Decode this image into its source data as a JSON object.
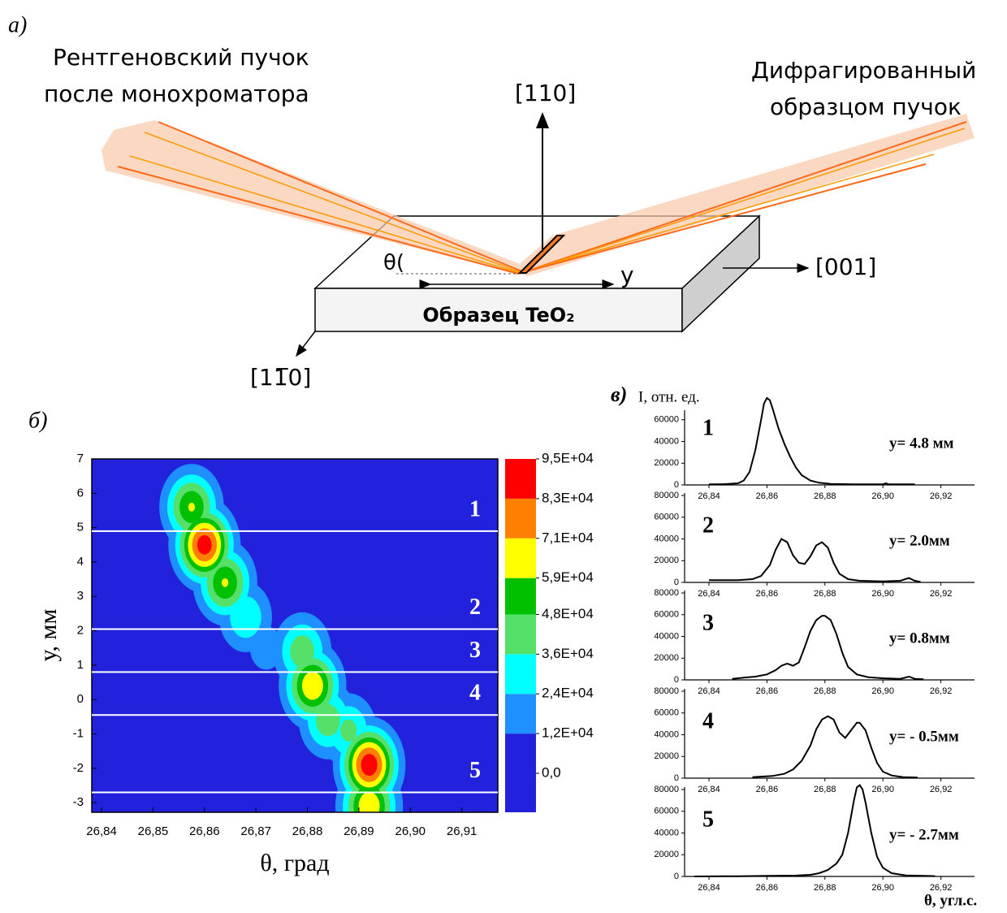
{
  "panel_a": {
    "label": "а)",
    "beam_in": [
      "Рентгеновский пучок",
      "после монохроматора"
    ],
    "beam_out": [
      "Дифрагированный",
      "образцом пучок"
    ],
    "axis_110": "[110]",
    "axis_001": "[001]",
    "axis_1m10": "[11̅0]",
    "theta": "θ(",
    "y": "y",
    "sample": "Образец TeO₂"
  },
  "chart_data": [
    {
      "type": "contour",
      "panel_label": "б)",
      "xlabel": "θ, град",
      "ylabel": "у, мм",
      "xlim": [
        26.8381,
        26.917
      ],
      "ylim": [
        -3.28,
        7
      ],
      "xticks": [
        {
          "value": 26.84,
          "label": "26,84"
        },
        {
          "value": 26.85,
          "label": "26,85"
        },
        {
          "value": 26.86,
          "label": "26,86"
        },
        {
          "value": 26.87,
          "label": "26,87"
        },
        {
          "value": 26.88,
          "label": "26,88"
        },
        {
          "value": 26.89,
          "label": "26,89"
        },
        {
          "value": 26.9,
          "label": "26,90"
        },
        {
          "value": 26.91,
          "label": "26,91"
        }
      ],
      "yticks": [
        -3,
        -2,
        -1,
        0,
        1,
        2,
        3,
        4,
        5,
        6,
        7
      ],
      "colorbar_ticks": [
        {
          "value": 0,
          "label": "0,0"
        },
        {
          "value": 12000,
          "label": "1,2E+04"
        },
        {
          "value": 24000,
          "label": "2,4E+04"
        },
        {
          "value": 36000,
          "label": "3,6E+04"
        },
        {
          "value": 48000,
          "label": "4,8E+04"
        },
        {
          "value": 59000,
          "label": "5,9E+04"
        },
        {
          "value": 71000,
          "label": "7,1E+04"
        },
        {
          "value": 83000,
          "label": "8,3E+04"
        },
        {
          "value": 95000,
          "label": "9,5E+04"
        }
      ],
      "colors": [
        "#2222dd",
        "#1e90ff",
        "#00ffff",
        "#55e06a",
        "#00c000",
        "#ffff00",
        "#ff8000",
        "#ff0000"
      ],
      "peaks": [
        {
          "x": 26.8575,
          "y": 5.6,
          "value": 60000,
          "sx": 0.0035,
          "sy": 0.7
        },
        {
          "x": 26.86,
          "y": 4.5,
          "value": 90000,
          "sx": 0.0035,
          "sy": 0.7
        },
        {
          "x": 26.864,
          "y": 3.4,
          "value": 60000,
          "sx": 0.0035,
          "sy": 0.7
        },
        {
          "x": 26.868,
          "y": 2.4,
          "value": 35000,
          "sx": 0.0035,
          "sy": 0.7
        },
        {
          "x": 26.872,
          "y": 1.5,
          "value": 18000,
          "sx": 0.0035,
          "sy": 0.7
        },
        {
          "x": 26.879,
          "y": 1.4,
          "value": 45000,
          "sx": 0.0035,
          "sy": 0.7
        },
        {
          "x": 26.881,
          "y": 0.4,
          "value": 70000,
          "sx": 0.0035,
          "sy": 0.7
        },
        {
          "x": 26.884,
          "y": -0.6,
          "value": 45000,
          "sx": 0.0035,
          "sy": 0.7
        },
        {
          "x": 26.888,
          "y": -0.9,
          "value": 40000,
          "sx": 0.0035,
          "sy": 0.7
        },
        {
          "x": 26.892,
          "y": -1.9,
          "value": 92000,
          "sx": 0.0035,
          "sy": 0.7
        },
        {
          "x": 26.892,
          "y": -3.1,
          "value": 70000,
          "sx": 0.0035,
          "sy": 0.7
        }
      ],
      "scan_lines": [
        {
          "label": "1",
          "y": 4.9
        },
        {
          "label": "2",
          "y": 2.05
        },
        {
          "label": "3",
          "y": 0.8
        },
        {
          "label": "4",
          "y": -0.45
        },
        {
          "label": "5",
          "y": -2.7
        }
      ]
    },
    {
      "type": "line",
      "panel_label": "в)",
      "ylabel": "I, отн. ед.",
      "label": "1",
      "annotation": "y=  4.8 мм",
      "color": "#000000",
      "xlim": [
        26.8316,
        26.9316
      ],
      "ylim": [
        0,
        80000
      ],
      "xticks": [
        {
          "value": 26.84,
          "label": "26,84"
        },
        {
          "value": 26.86,
          "label": "26,86"
        },
        {
          "value": 26.88,
          "label": "26,88"
        },
        {
          "value": 26.9,
          "label": "26,90"
        },
        {
          "value": 26.92,
          "label": "26,92"
        }
      ],
      "yticks": [
        0,
        20000,
        40000,
        60000
      ],
      "x": [
        26.84,
        26.845,
        26.85,
        26.852,
        26.854,
        26.856,
        26.858,
        26.859,
        26.86,
        26.861,
        26.862,
        26.864,
        26.866,
        26.868,
        26.87,
        26.872,
        26.875,
        26.878,
        26.882,
        26.89,
        26.9,
        26.901,
        26.902,
        26.906,
        26.911
      ],
      "values": [
        500,
        700,
        1500,
        4000,
        12000,
        32000,
        60000,
        75000,
        80000,
        78000,
        70000,
        52000,
        38000,
        26000,
        16000,
        9000,
        4000,
        2000,
        1000,
        500,
        500,
        1500,
        500,
        500,
        500
      ]
    },
    {
      "type": "line",
      "label": "2",
      "annotation": "y= 2.0мм",
      "color": "#000000",
      "xlim": [
        26.8316,
        26.9316
      ],
      "ylim": [
        0,
        80000
      ],
      "xticks": [
        {
          "value": 26.84,
          "label": "26,84"
        },
        {
          "value": 26.86,
          "label": "26,86"
        },
        {
          "value": 26.88,
          "label": "26,88"
        },
        {
          "value": 26.9,
          "label": "26,90"
        },
        {
          "value": 26.92,
          "label": "26,92"
        }
      ],
      "yticks": [
        0,
        20000,
        40000,
        60000,
        80000
      ],
      "x": [
        26.84,
        26.85,
        26.855,
        26.858,
        26.861,
        26.863,
        26.865,
        26.867,
        26.869,
        26.871,
        26.873,
        26.875,
        26.877,
        26.879,
        26.881,
        26.883,
        26.885,
        26.888,
        26.892,
        26.9,
        26.906,
        26.909,
        26.911,
        26.913
      ],
      "values": [
        2000,
        2000,
        3000,
        6000,
        16000,
        30000,
        40000,
        37000,
        25000,
        18000,
        17000,
        24000,
        34000,
        37000,
        32000,
        18000,
        8000,
        3000,
        1500,
        1000,
        1500,
        4000,
        1500,
        500
      ]
    },
    {
      "type": "line",
      "label": "3",
      "annotation": "y= 0.8мм",
      "color": "#000000",
      "xlim": [
        26.8316,
        26.9316
      ],
      "ylim": [
        0,
        80000
      ],
      "xticks": [
        {
          "value": 26.84,
          "label": "26,84"
        },
        {
          "value": 26.86,
          "label": "26,86"
        },
        {
          "value": 26.88,
          "label": "26,88"
        },
        {
          "value": 26.9,
          "label": "26,90"
        },
        {
          "value": 26.92,
          "label": "26,92"
        }
      ],
      "yticks": [
        0,
        20000,
        40000,
        60000,
        80000
      ],
      "x": [
        26.848,
        26.852,
        26.856,
        26.86,
        26.863,
        26.865,
        26.867,
        26.869,
        26.871,
        26.873,
        26.875,
        26.877,
        26.879,
        26.88,
        26.882,
        26.884,
        26.886,
        26.888,
        26.891,
        26.895,
        26.9,
        26.906,
        26.909,
        26.911,
        26.914
      ],
      "values": [
        1000,
        2000,
        3000,
        5000,
        9000,
        13000,
        15000,
        13000,
        16000,
        30000,
        45000,
        55000,
        59000,
        59000,
        55000,
        42000,
        25000,
        12000,
        5000,
        2500,
        1500,
        1000,
        3000,
        1000,
        500
      ]
    },
    {
      "type": "line",
      "label": "4",
      "annotation": "y= - 0.5мм",
      "color": "#000000",
      "xlim": [
        26.8316,
        26.9316
      ],
      "ylim": [
        0,
        80000
      ],
      "xticks": [
        {
          "value": 26.84,
          "label": "26,84"
        },
        {
          "value": 26.86,
          "label": "26,86"
        },
        {
          "value": 26.88,
          "label": "26,88"
        },
        {
          "value": 26.9,
          "label": "26,90"
        },
        {
          "value": 26.92,
          "label": "26,92"
        }
      ],
      "yticks": [
        0,
        20000,
        40000,
        60000,
        80000
      ],
      "x": [
        26.855,
        26.862,
        26.866,
        26.869,
        26.872,
        26.875,
        26.877,
        26.879,
        26.881,
        26.883,
        26.885,
        26.887,
        26.889,
        26.891,
        26.892,
        26.894,
        26.896,
        26.898,
        26.9,
        26.903,
        26.907,
        26.912
      ],
      "values": [
        1000,
        2000,
        4000,
        8000,
        16000,
        30000,
        45000,
        54000,
        57000,
        54000,
        42000,
        37000,
        44000,
        51000,
        51000,
        44000,
        28000,
        14000,
        6000,
        2500,
        1000,
        500
      ]
    },
    {
      "type": "line",
      "label": "5",
      "annotation": "y= - 2.7мм",
      "xlabel": "θ, угл.с.",
      "color": "#000000",
      "xlim": [
        26.8316,
        26.9316
      ],
      "ylim": [
        0,
        80000
      ],
      "xticks": [
        {
          "value": 26.84,
          "label": "26,84"
        },
        {
          "value": 26.86,
          "label": "26,86"
        },
        {
          "value": 26.88,
          "label": "26,88"
        },
        {
          "value": 26.9,
          "label": "26,90"
        },
        {
          "value": 26.92,
          "label": "26,92"
        }
      ],
      "yticks": [
        0,
        20000,
        40000,
        60000,
        80000
      ],
      "x": [
        26.835,
        26.85,
        26.86,
        26.87,
        26.875,
        26.878,
        26.881,
        26.884,
        26.886,
        26.888,
        26.89,
        26.891,
        26.892,
        26.893,
        26.894,
        26.896,
        26.898,
        26.9,
        26.903,
        26.908,
        26.918
      ],
      "values": [
        0,
        200,
        500,
        800,
        1500,
        3000,
        6000,
        12000,
        20000,
        40000,
        70000,
        82000,
        84000,
        80000,
        68000,
        40000,
        18000,
        8000,
        3000,
        1000,
        300
      ]
    }
  ]
}
